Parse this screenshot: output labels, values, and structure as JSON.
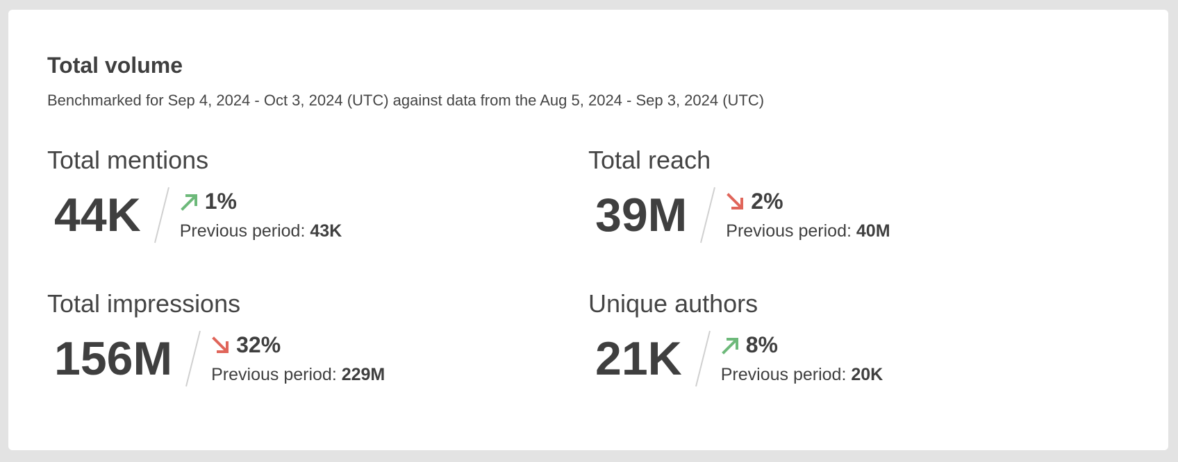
{
  "header": {
    "title": "Total volume",
    "subtitle": "Benchmarked for Sep 4, 2024 - Oct 3, 2024 (UTC) against data from the Aug 5, 2024 - Sep 3, 2024 (UTC)"
  },
  "metrics": [
    {
      "label": "Total mentions",
      "value": "44K",
      "change": "1%",
      "direction": "up",
      "previous_label": "Previous period:",
      "previous_value": "43K"
    },
    {
      "label": "Total reach",
      "value": "39M",
      "change": "2%",
      "direction": "down",
      "previous_label": "Previous period:",
      "previous_value": "40M"
    },
    {
      "label": "Total impressions",
      "value": "156M",
      "change": "32%",
      "direction": "down",
      "previous_label": "Previous period:",
      "previous_value": "229M"
    },
    {
      "label": "Unique authors",
      "value": "21K",
      "change": "8%",
      "direction": "up",
      "previous_label": "Previous period:",
      "previous_value": "20K"
    }
  ]
}
